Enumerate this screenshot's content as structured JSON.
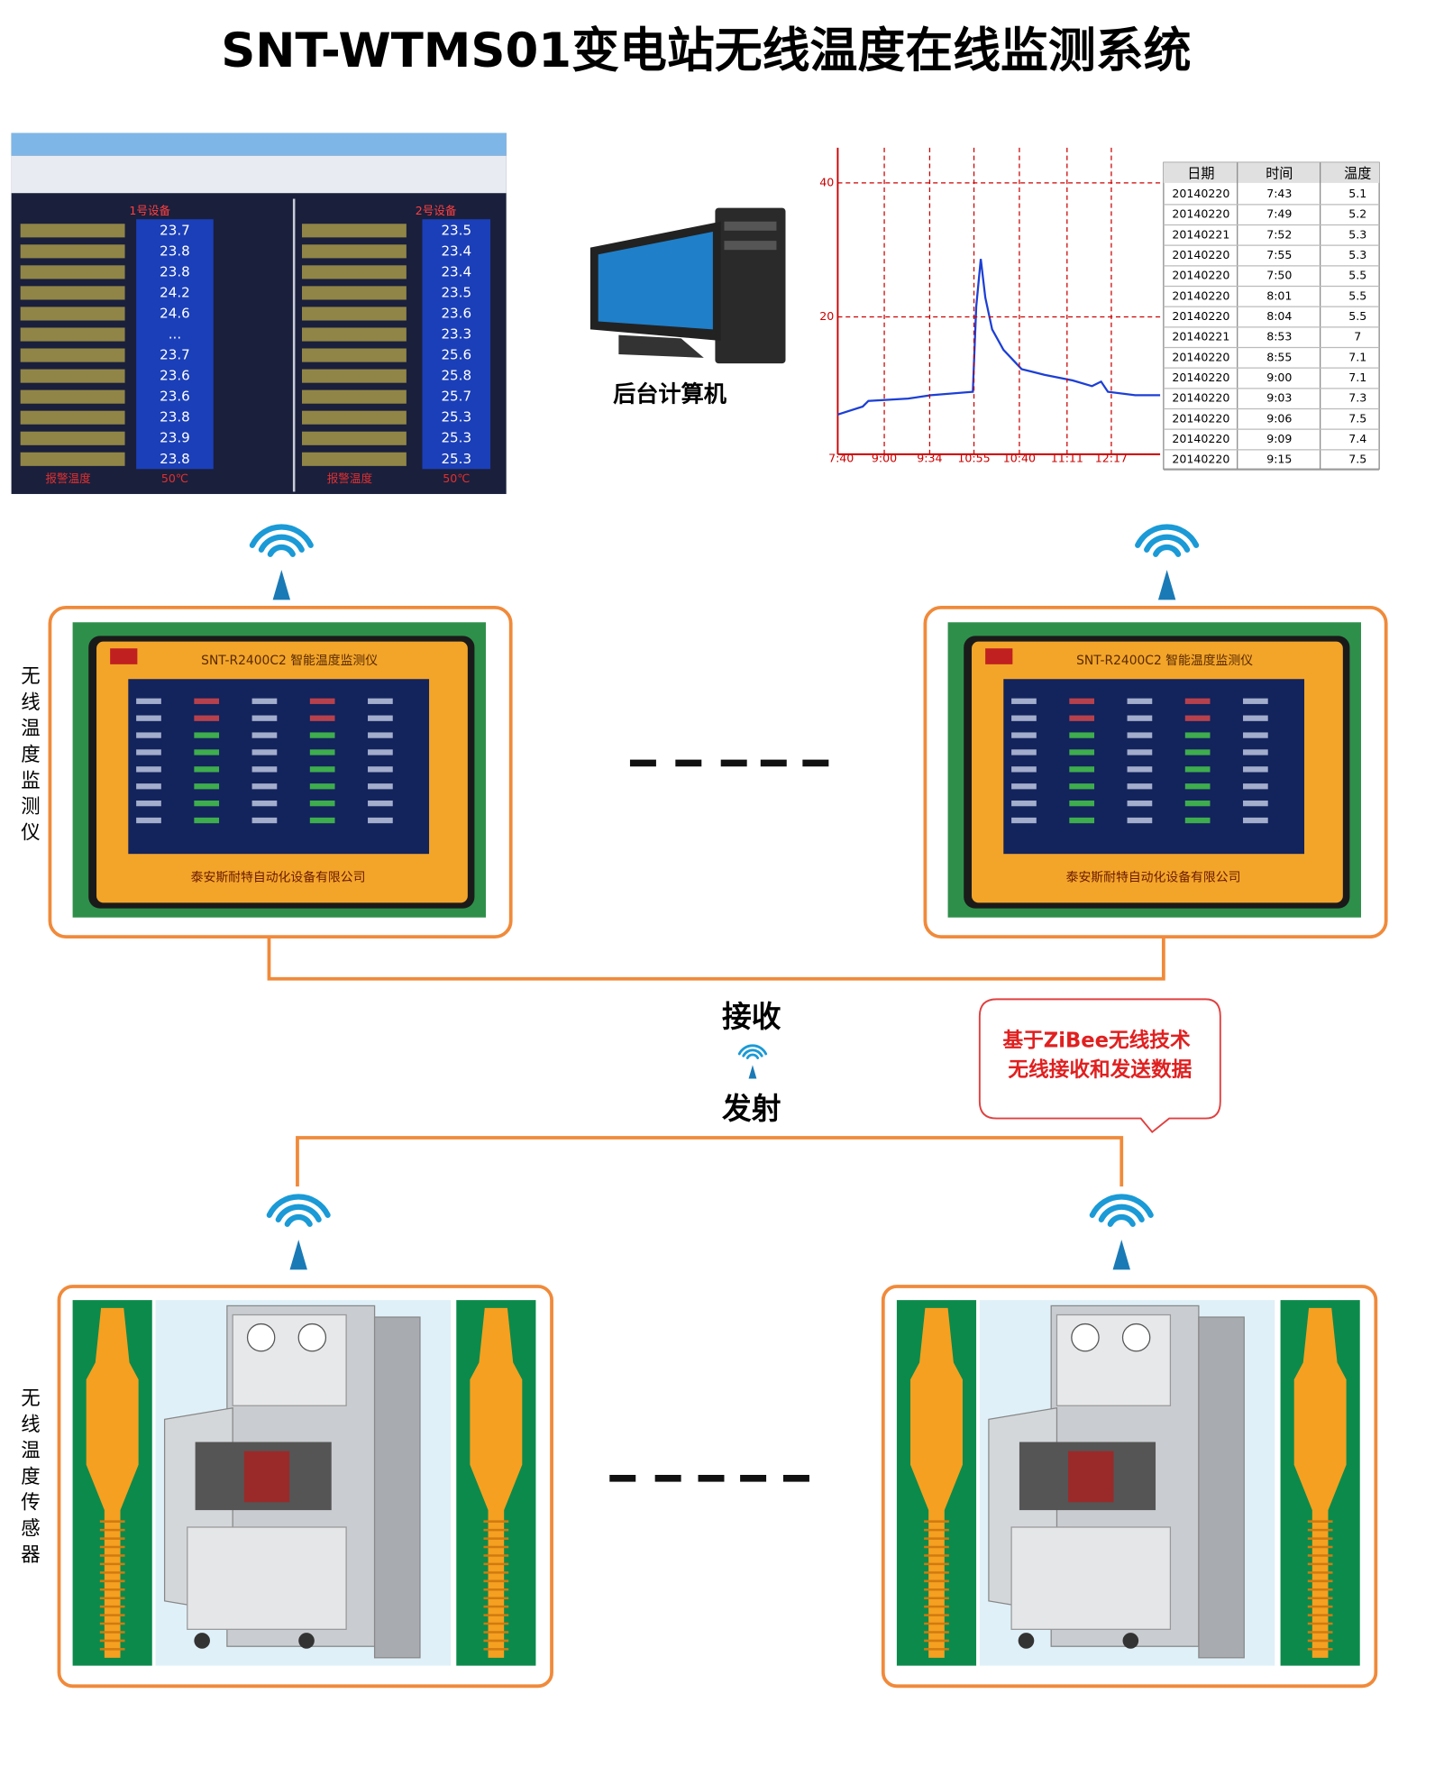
{
  "header": {
    "title": "SNT-WTMS01变电站无线温度在线监测系统"
  },
  "software_screen": {
    "panels": [
      {
        "heading": "1号设备",
        "values": [
          "23.7",
          "23.8",
          "23.8",
          "24.2",
          "24.6",
          "...",
          "23.7",
          "23.6",
          "23.6",
          "23.8",
          "23.9",
          "23.8"
        ],
        "alarm_label": "报警温度",
        "alarm_value": "50℃"
      },
      {
        "heading": "2号设备",
        "values": [
          "23.5",
          "23.4",
          "23.4",
          "23.5",
          "23.6",
          "23.3",
          "25.6",
          "25.8",
          "25.7",
          "25.3",
          "25.3",
          "25.3"
        ],
        "alarm_label": "报警温度",
        "alarm_value": "50℃"
      }
    ]
  },
  "computer": {
    "label": "后台计算机"
  },
  "trend": {
    "yticks": [
      "40",
      "20"
    ],
    "xticks": [
      "7:40",
      "9:00",
      "9:34",
      "10:55",
      "10:40",
      "11:11",
      "12:17"
    ],
    "table": {
      "columns": [
        "日期",
        "时间",
        "温度"
      ],
      "rows": [
        [
          "20140220",
          "7:43",
          "5.1"
        ],
        [
          "20140220",
          "7:49",
          "5.2"
        ],
        [
          "20140221",
          "7:52",
          "5.3"
        ],
        [
          "20140220",
          "7:55",
          "5.3"
        ],
        [
          "20140220",
          "7:50",
          "5.5"
        ],
        [
          "20140220",
          "8:01",
          "5.5"
        ],
        [
          "20140220",
          "8:04",
          "5.5"
        ],
        [
          "20140221",
          "8:53",
          "7"
        ],
        [
          "20140220",
          "8:55",
          "7.1"
        ],
        [
          "20140220",
          "9:00",
          "7.1"
        ],
        [
          "20140220",
          "9:03",
          "7.3"
        ],
        [
          "20140220",
          "9:06",
          "7.5"
        ],
        [
          "20140220",
          "9:09",
          "7.4"
        ],
        [
          "20140220",
          "9:15",
          "7.5"
        ]
      ]
    }
  },
  "monitors": {
    "label": "无线温度监测仪",
    "device_title": "SNT-R2400C2 智能温度监测仪",
    "company": "泰安斯耐特自动化设备有限公司"
  },
  "link": {
    "receive": "接收",
    "transmit": "发射"
  },
  "callout": {
    "lines": [
      "基于ZiBee无线技术",
      "无线接收和发送数据"
    ]
  },
  "sensors": {
    "label": "无线温度传感器"
  }
}
